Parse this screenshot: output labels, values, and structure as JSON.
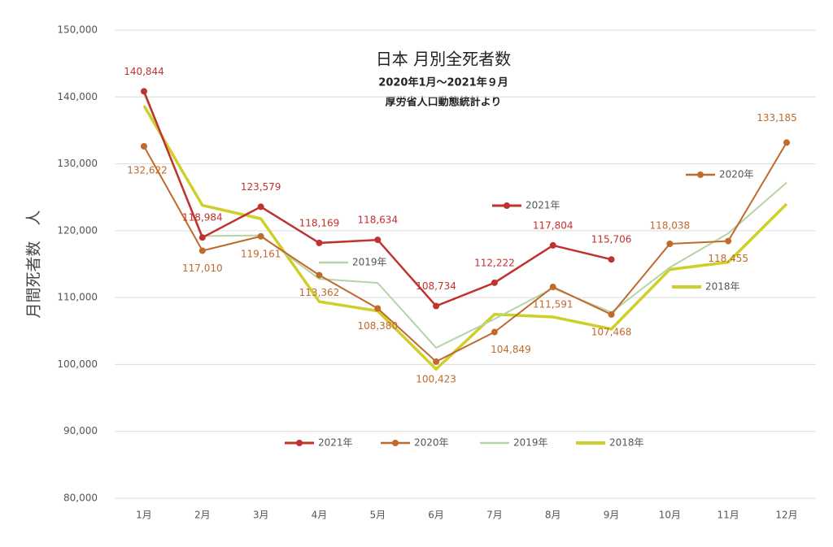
{
  "chart_data": {
    "type": "line",
    "title": "日本 月別全死者数",
    "subtitle": "2020年1月～2021年９月",
    "source": "厚労省人口動態統計より",
    "y_label": "月間死者数　人",
    "categories": [
      "1月",
      "2月",
      "3月",
      "4月",
      "5月",
      "6月",
      "7月",
      "8月",
      "9月",
      "10月",
      "11月",
      "12月"
    ],
    "series": [
      {
        "name": "2021年",
        "color": "#c0322f",
        "marker": true,
        "values": [
          140844,
          118984,
          123579,
          118169,
          118634,
          108734,
          112222,
          117804,
          115706,
          null,
          null,
          null
        ],
        "value_labels": [
          "140,844",
          "118,984",
          "123,579",
          "118,169",
          "118,634",
          "108,734",
          "112,222",
          "117,804",
          "115,706",
          null,
          null,
          null
        ]
      },
      {
        "name": "2020年",
        "color": "#c06a2b",
        "marker": true,
        "values": [
          132622,
          117010,
          119161,
          113362,
          108380,
          100423,
          104849,
          111591,
          107468,
          118038,
          118455,
          133185
        ],
        "value_labels": [
          "132,622",
          "117,010",
          "119,161",
          "113,362",
          "108,380",
          "100,423",
          "104,849",
          "111,591",
          "107,468",
          "118,038",
          "118,455",
          "133,185"
        ]
      },
      {
        "name": "2019年",
        "color": "#b5d3a5",
        "marker": false,
        "values": [
          140500,
          119200,
          119300,
          112800,
          112200,
          102500,
          106800,
          111400,
          107800,
          114500,
          119600,
          127200
        ]
      },
      {
        "name": "2018年",
        "color": "#cfcf2a",
        "marker": false,
        "values": [
          138700,
          123800,
          121800,
          109400,
          108000,
          99300,
          107500,
          107100,
          105300,
          114200,
          115300,
          124000
        ]
      }
    ],
    "ylim": [
      80000,
      150000
    ],
    "yticks": [
      {
        "value": 80000,
        "label": "80,000"
      },
      {
        "value": 90000,
        "label": "90,000"
      },
      {
        "value": 100000,
        "label": "100,000"
      },
      {
        "value": 110000,
        "label": "110,000"
      },
      {
        "value": 120000,
        "label": "120,000"
      },
      {
        "value": 130000,
        "label": "130,000"
      },
      {
        "value": 140000,
        "label": "140,000"
      },
      {
        "value": 150000,
        "label": "150,000"
      }
    ],
    "grid": true,
    "legend": "bottom"
  }
}
